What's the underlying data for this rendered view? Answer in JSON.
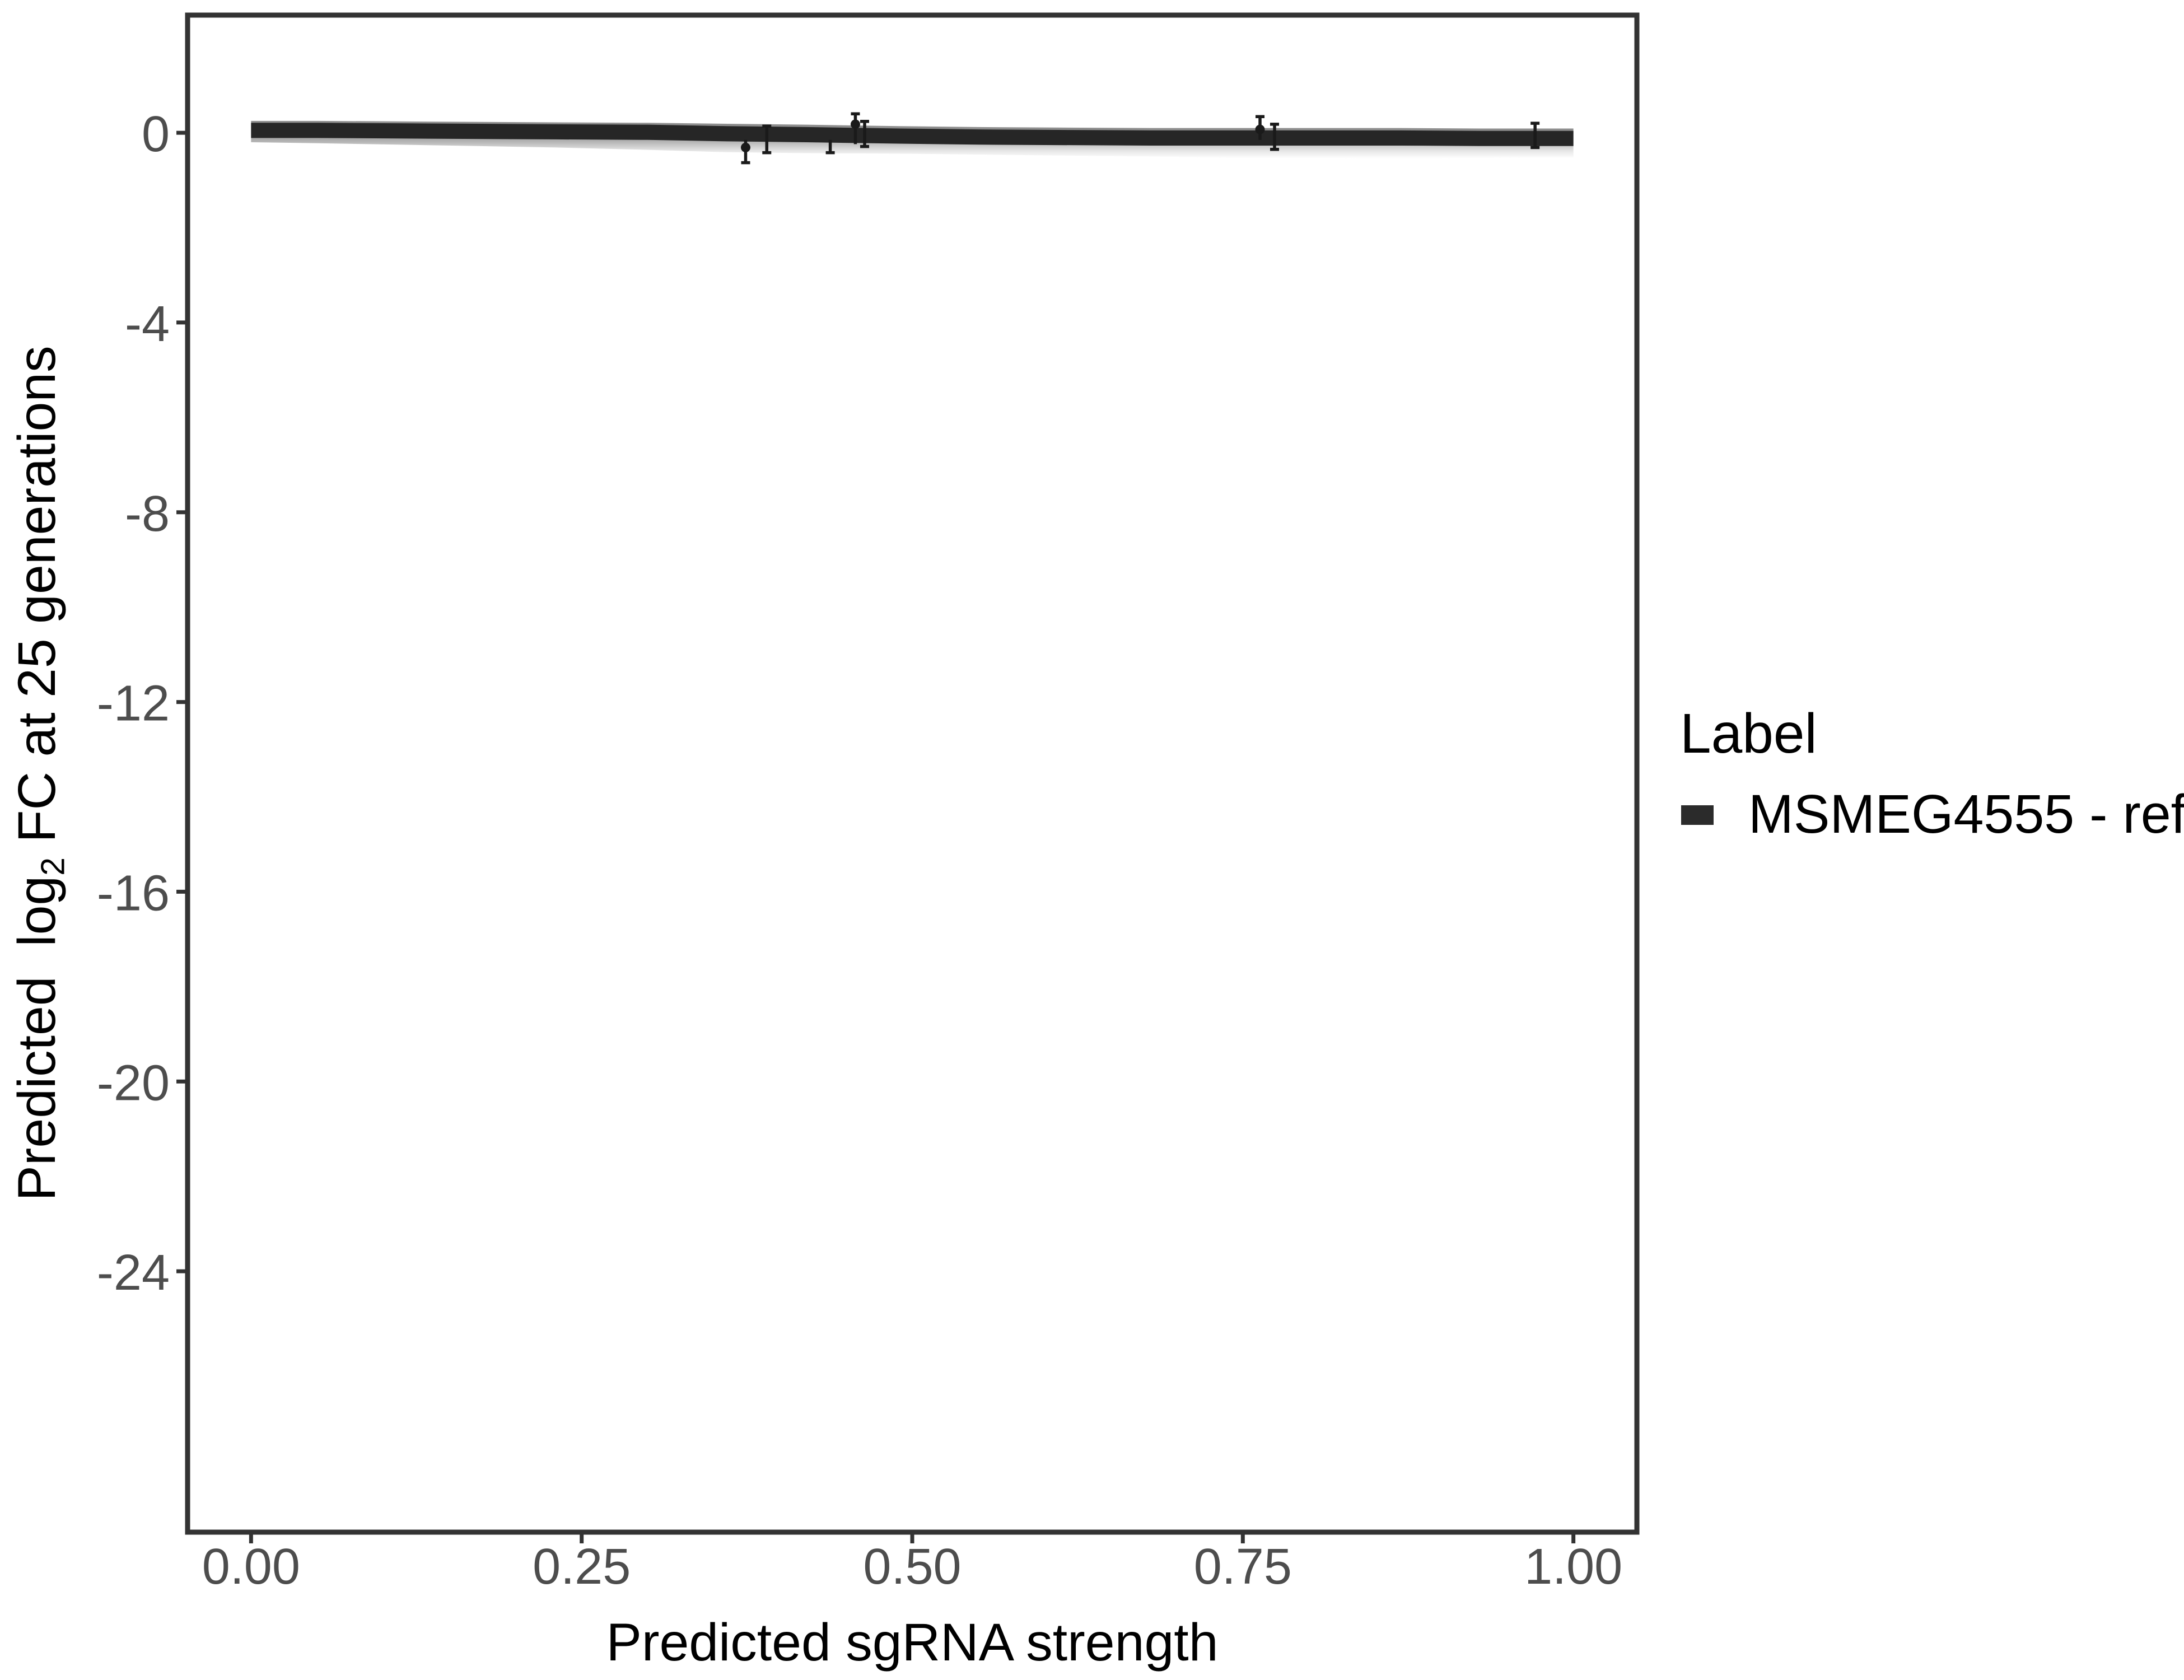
{
  "figure": {
    "background": "#ffffff"
  },
  "colors": {
    "panel_border": "#333333",
    "tick_mark": "#333333",
    "tick_label": "#4d4d4d",
    "axis_title": "#000000",
    "fit_line": "#262626",
    "error_bar": "#1a1a1a",
    "ci_dark": "#8e8e8e",
    "ci_mid": "#b4b4b4",
    "ci_light": "#e6e6e6",
    "legend_swatch": "#2b2b2b"
  },
  "axes": {
    "x_title": "Predicted sgRNA strength",
    "y_title_prefix": "Predicted  log",
    "y_title_sub": "2",
    "y_title_suffix": " FC at 25 generations"
  },
  "legend": {
    "title": "Label",
    "items": [
      {
        "label": "MSMEG4555 - ref",
        "swatch_color": "#2b2b2b"
      }
    ]
  },
  "chart_data": {
    "type": "line",
    "title": "",
    "xlabel": "Predicted sgRNA strength",
    "ylabel": "Predicted log2 FC at 25 generations",
    "xlim": [
      -0.048,
      1.048
    ],
    "ylim": [
      -29.5,
      2.48
    ],
    "grid": false,
    "legend_position": "right",
    "x_ticks": {
      "values": [
        0,
        0.25,
        0.5,
        0.75,
        1.0
      ],
      "labels": [
        "0.00",
        "0.25",
        "0.50",
        "0.75",
        "1.00"
      ]
    },
    "y_ticks": {
      "values": [
        0,
        -4,
        -8,
        -12,
        -16,
        -20,
        -24
      ],
      "labels": [
        "0",
        "-4",
        "-8",
        "-12",
        "-16",
        "-20",
        "-24"
      ]
    },
    "series": [
      {
        "name": "MSMEG4555 - ref",
        "kind": "fit-line",
        "x": [
          0,
          0.05,
          0.11,
          0.17,
          0.23,
          0.3,
          0.36,
          0.42,
          0.49,
          0.55,
          0.61,
          0.68,
          0.74,
          0.8,
          0.87,
          0.93,
          1.0
        ],
        "y": [
          0.05,
          0.05,
          0.04,
          0.03,
          0.02,
          0.01,
          -0.02,
          -0.04,
          -0.07,
          -0.09,
          -0.1,
          -0.11,
          -0.11,
          -0.11,
          -0.11,
          -0.12,
          -0.12
        ],
        "line_width_units": 0.32
      },
      {
        "name": "confidence-band",
        "kind": "ci-band",
        "x": [
          0,
          0.05,
          0.11,
          0.17,
          0.23,
          0.3,
          0.36,
          0.42,
          0.49,
          0.55,
          0.61,
          0.68,
          0.74,
          0.8,
          0.87,
          0.93,
          1.0
        ],
        "y_upper": [
          0.25,
          0.25,
          0.24,
          0.23,
          0.22,
          0.21,
          0.19,
          0.17,
          0.14,
          0.12,
          0.11,
          0.1,
          0.1,
          0.1,
          0.1,
          0.09,
          0.09
        ],
        "y_lower": [
          -0.2,
          -0.22,
          -0.25,
          -0.28,
          -0.31,
          -0.36,
          -0.41,
          -0.43,
          -0.44,
          -0.46,
          -0.48,
          -0.5,
          -0.53,
          -0.53,
          -0.54,
          -0.53,
          -0.52
        ]
      }
    ],
    "points": [
      {
        "x": 0.374,
        "y": -0.31,
        "ymin": -0.63,
        "ymax": -0.15,
        "point": true,
        "cap_top": false,
        "cap_bottom": true
      },
      {
        "x": 0.39,
        "y": -0.14,
        "ymin": -0.42,
        "ymax": 0.14,
        "point": false,
        "cap_top": true,
        "cap_bottom": true
      },
      {
        "x": 0.438,
        "y": -0.28,
        "ymin": -0.42,
        "ymax": -0.15,
        "point": false,
        "cap_top": false,
        "cap_bottom": true
      },
      {
        "x": 0.457,
        "y": 0.18,
        "ymin": -0.24,
        "ymax": 0.4,
        "point": true,
        "cap_top": true,
        "cap_bottom": false
      },
      {
        "x": 0.464,
        "y": -0.03,
        "ymin": -0.29,
        "ymax": 0.24,
        "point": false,
        "cap_top": true,
        "cap_bottom": true
      },
      {
        "x": 0.763,
        "y": 0.07,
        "ymin": -0.15,
        "ymax": 0.34,
        "point": true,
        "cap_top": true,
        "cap_bottom": false
      },
      {
        "x": 0.774,
        "y": -0.09,
        "ymin": -0.35,
        "ymax": 0.18,
        "point": false,
        "cap_top": true,
        "cap_bottom": true
      },
      {
        "x": 0.971,
        "y": -0.06,
        "ymin": -0.31,
        "ymax": 0.2,
        "point": false,
        "cap_top": true,
        "cap_bottom": true
      }
    ]
  }
}
